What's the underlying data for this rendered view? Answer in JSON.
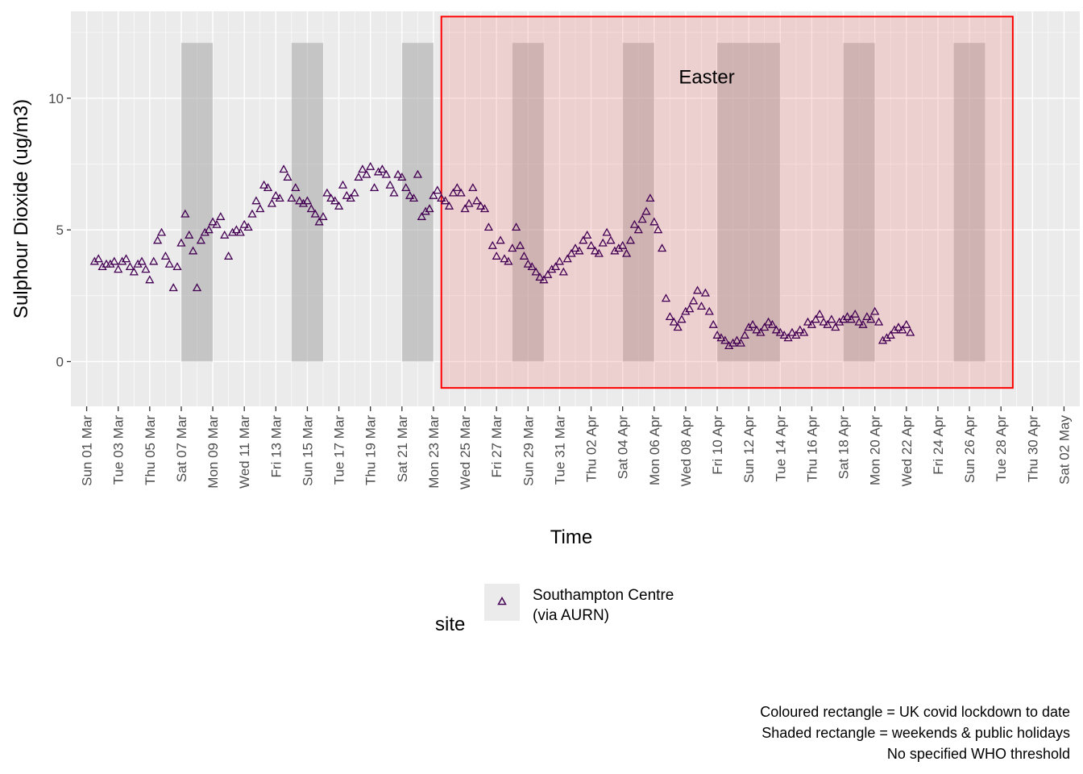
{
  "chart_data": {
    "type": "scatter",
    "title": "",
    "xlabel": "Time",
    "ylabel": "Sulphour Dioxide (ug/m3)",
    "xlim": [
      "2020-02-29T00:00",
      "2020-05-03T00:00"
    ],
    "ylim": [
      -1.7,
      13.3
    ],
    "y_ticks": [
      0,
      5,
      10
    ],
    "x_ticks": [
      {
        "date": "2020-03-01",
        "label": "Sun 01 Mar"
      },
      {
        "date": "2020-03-03",
        "label": "Tue 03 Mar"
      },
      {
        "date": "2020-03-05",
        "label": "Thu 05 Mar"
      },
      {
        "date": "2020-03-07",
        "label": "Sat 07 Mar"
      },
      {
        "date": "2020-03-09",
        "label": "Mon 09 Mar"
      },
      {
        "date": "2020-03-11",
        "label": "Wed 11 Mar"
      },
      {
        "date": "2020-03-13",
        "label": "Fri 13 Mar"
      },
      {
        "date": "2020-03-15",
        "label": "Sun 15 Mar"
      },
      {
        "date": "2020-03-17",
        "label": "Tue 17 Mar"
      },
      {
        "date": "2020-03-19",
        "label": "Thu 19 Mar"
      },
      {
        "date": "2020-03-21",
        "label": "Sat 21 Mar"
      },
      {
        "date": "2020-03-23",
        "label": "Mon 23 Mar"
      },
      {
        "date": "2020-03-25",
        "label": "Wed 25 Mar"
      },
      {
        "date": "2020-03-27",
        "label": "Fri 27 Mar"
      },
      {
        "date": "2020-03-29",
        "label": "Sun 29 Mar"
      },
      {
        "date": "2020-03-31",
        "label": "Tue 31 Mar"
      },
      {
        "date": "2020-04-02",
        "label": "Thu 02 Apr"
      },
      {
        "date": "2020-04-04",
        "label": "Sat 04 Apr"
      },
      {
        "date": "2020-04-06",
        "label": "Mon 06 Apr"
      },
      {
        "date": "2020-04-08",
        "label": "Wed 08 Apr"
      },
      {
        "date": "2020-04-10",
        "label": "Fri 10 Apr"
      },
      {
        "date": "2020-04-12",
        "label": "Sun 12 Apr"
      },
      {
        "date": "2020-04-14",
        "label": "Tue 14 Apr"
      },
      {
        "date": "2020-04-16",
        "label": "Thu 16 Apr"
      },
      {
        "date": "2020-04-18",
        "label": "Sat 18 Apr"
      },
      {
        "date": "2020-04-20",
        "label": "Mon 20 Apr"
      },
      {
        "date": "2020-04-22",
        "label": "Wed 22 Apr"
      },
      {
        "date": "2020-04-24",
        "label": "Fri 24 Apr"
      },
      {
        "date": "2020-04-26",
        "label": "Sun 26 Apr"
      },
      {
        "date": "2020-04-28",
        "label": "Tue 28 Apr"
      },
      {
        "date": "2020-04-30",
        "label": "Thu 30 Apr"
      },
      {
        "date": "2020-05-02",
        "label": "Sat 02 May"
      }
    ],
    "lockdown_rect": {
      "x_start": "2020-03-23T12:00",
      "x_end": "2020-04-28T18:00",
      "y_min": -1,
      "y_max": 13.1,
      "fill": "#f08080",
      "stroke": "#ff0000"
    },
    "shaded_periods": [
      {
        "x_start": "2020-03-07",
        "x_end": "2020-03-09",
        "y_max": 12.1
      },
      {
        "x_start": "2020-03-14",
        "x_end": "2020-03-16",
        "y_max": 12.1
      },
      {
        "x_start": "2020-03-21",
        "x_end": "2020-03-23",
        "y_max": 12.1
      },
      {
        "x_start": "2020-03-28",
        "x_end": "2020-03-30",
        "y_max": 12.1
      },
      {
        "x_start": "2020-04-04",
        "x_end": "2020-04-06",
        "y_max": 12.1
      },
      {
        "x_start": "2020-04-10",
        "x_end": "2020-04-14",
        "y_max": 12.1
      },
      {
        "x_start": "2020-04-18",
        "x_end": "2020-04-20",
        "y_max": 12.1
      },
      {
        "x_start": "2020-04-25",
        "x_end": "2020-04-27",
        "y_max": 12.1
      }
    ],
    "annotations": [
      {
        "text": "Easter",
        "x": "2020-04-09T08:00",
        "y": 10.8
      }
    ],
    "legend": {
      "title": "site",
      "placement": "bottom",
      "entries": [
        {
          "label_line1": "Southampton Centre",
          "label_line2": "(via AURN)",
          "color": "#440154",
          "marker": "triangle-open"
        }
      ]
    },
    "series": [
      {
        "name": "Southampton Centre (via AURN)",
        "color": "#440154",
        "marker": "triangle-open",
        "x_start": "2020-03-01T12:00",
        "x_step_hours": 6,
        "values": [
          3.8,
          3.9,
          3.6,
          3.7,
          3.7,
          3.8,
          3.5,
          3.8,
          3.9,
          3.6,
          3.4,
          3.7,
          3.8,
          3.5,
          3.1,
          3.8,
          4.6,
          4.9,
          4.0,
          3.7,
          2.8,
          3.6,
          4.5,
          5.6,
          4.8,
          4.2,
          2.8,
          4.6,
          4.9,
          5.0,
          5.3,
          5.2,
          5.5,
          4.8,
          4.0,
          4.9,
          5.0,
          4.9,
          5.2,
          5.1,
          5.6,
          6.1,
          5.8,
          6.7,
          6.6,
          6.0,
          6.3,
          6.2,
          7.3,
          7.0,
          6.2,
          6.6,
          6.1,
          6.0,
          6.1,
          5.8,
          5.6,
          5.3,
          5.5,
          6.4,
          6.2,
          6.1,
          5.9,
          6.7,
          6.3,
          6.2,
          6.4,
          7.0,
          7.3,
          7.1,
          7.4,
          6.6,
          7.2,
          7.3,
          7.1,
          6.7,
          6.4,
          7.1,
          7.0,
          6.6,
          6.3,
          6.2,
          7.1,
          5.5,
          5.7,
          5.8,
          6.3,
          6.5,
          6.2,
          6.1,
          5.9,
          6.4,
          6.6,
          6.4,
          5.8,
          6.0,
          6.6,
          6.1,
          5.9,
          5.8,
          5.1,
          4.4,
          4.0,
          4.6,
          3.9,
          3.8,
          4.3,
          5.1,
          4.4,
          4.0,
          3.7,
          3.6,
          3.4,
          3.2,
          3.1,
          3.3,
          3.5,
          3.6,
          3.8,
          3.4,
          3.9,
          4.1,
          4.3,
          4.2,
          4.6,
          4.8,
          4.4,
          4.2,
          4.1,
          4.5,
          4.9,
          4.6,
          4.2,
          4.3,
          4.4,
          4.1,
          4.6,
          5.2,
          5.0,
          5.4,
          5.7,
          6.2,
          5.3,
          5.0,
          4.3,
          2.4,
          1.7,
          1.5,
          1.3,
          1.6,
          1.9,
          2.0,
          2.3,
          2.7,
          2.1,
          2.6,
          1.9,
          1.4,
          1.0,
          0.9,
          0.8,
          0.6,
          0.7,
          0.8,
          0.7,
          1.0,
          1.3,
          1.4,
          1.2,
          1.1,
          1.3,
          1.5,
          1.4,
          1.2,
          1.1,
          1.0,
          0.9,
          1.1,
          1.0,
          1.2,
          1.1,
          1.5,
          1.4,
          1.6,
          1.8,
          1.5,
          1.4,
          1.6,
          1.3,
          1.5,
          1.6,
          1.7,
          1.6,
          1.8,
          1.5,
          1.4,
          1.7,
          1.6,
          1.9,
          1.5,
          0.8,
          0.9,
          1.0,
          1.2,
          1.3,
          1.2,
          1.4,
          1.1
        ]
      }
    ]
  },
  "notes": [
    "Coloured rectangle = UK covid lockdown to date",
    "Shaded rectangle = weekends & public holidays",
    "No specified WHO threshold"
  ]
}
